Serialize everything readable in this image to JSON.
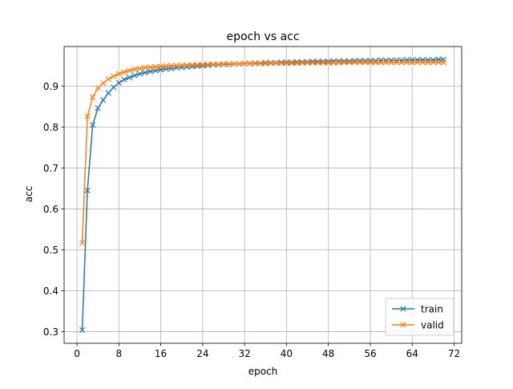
{
  "chart_data": {
    "type": "line",
    "title": "epoch vs acc",
    "xlabel": "epoch",
    "ylabel": "acc",
    "xlim": [
      -2.45,
      73.45
    ],
    "ylim": [
      0.2717,
      0.9967
    ],
    "xticks": [
      0,
      8,
      16,
      24,
      32,
      40,
      48,
      56,
      64,
      72
    ],
    "yticks": [
      0.3,
      0.4,
      0.5,
      0.6,
      0.7,
      0.8,
      0.9
    ],
    "grid": true,
    "legend_position": "lower-right",
    "marker": "x",
    "series": [
      {
        "name": "train",
        "color": "#1f77b4",
        "x": [
          1,
          2,
          3,
          4,
          5,
          6,
          7,
          8,
          9,
          10,
          11,
          12,
          13,
          14,
          15,
          16,
          17,
          18,
          19,
          20,
          21,
          22,
          23,
          24,
          25,
          26,
          27,
          28,
          29,
          30,
          31,
          32,
          33,
          34,
          35,
          36,
          37,
          38,
          39,
          40,
          41,
          42,
          43,
          44,
          45,
          46,
          47,
          48,
          49,
          50,
          51,
          52,
          53,
          54,
          55,
          56,
          57,
          58,
          59,
          60,
          61,
          62,
          63,
          64,
          65,
          66,
          67,
          68,
          69,
          70
        ],
        "values": [
          0.304,
          0.645,
          0.805,
          0.846,
          0.866,
          0.883,
          0.897,
          0.908,
          0.916,
          0.921,
          0.926,
          0.93,
          0.933,
          0.936,
          0.938,
          0.94,
          0.942,
          0.943,
          0.945,
          0.946,
          0.947,
          0.948,
          0.949,
          0.95,
          0.951,
          0.952,
          0.952,
          0.953,
          0.953,
          0.954,
          0.954,
          0.955,
          0.955,
          0.956,
          0.956,
          0.957,
          0.957,
          0.957,
          0.958,
          0.958,
          0.958,
          0.959,
          0.959,
          0.959,
          0.96,
          0.96,
          0.96,
          0.96,
          0.961,
          0.961,
          0.961,
          0.961,
          0.962,
          0.962,
          0.962,
          0.962,
          0.962,
          0.963,
          0.963,
          0.963,
          0.963,
          0.963,
          0.964,
          0.964,
          0.964,
          0.964,
          0.964,
          0.964,
          0.965,
          0.965
        ]
      },
      {
        "name": "valid",
        "color": "#ff7f0e",
        "x": [
          1,
          2,
          3,
          4,
          5,
          6,
          7,
          8,
          9,
          10,
          11,
          12,
          13,
          14,
          15,
          16,
          17,
          18,
          19,
          20,
          21,
          22,
          23,
          24,
          25,
          26,
          27,
          28,
          29,
          30,
          31,
          32,
          33,
          34,
          35,
          36,
          37,
          38,
          39,
          40,
          41,
          42,
          43,
          44,
          45,
          46,
          47,
          48,
          49,
          50,
          51,
          52,
          53,
          54,
          55,
          56,
          57,
          58,
          59,
          60,
          61,
          62,
          63,
          64,
          65,
          66,
          67,
          68,
          69,
          70
        ],
        "values": [
          0.517,
          0.826,
          0.873,
          0.895,
          0.907,
          0.917,
          0.924,
          0.93,
          0.934,
          0.938,
          0.941,
          0.943,
          0.945,
          0.946,
          0.947,
          0.948,
          0.949,
          0.95,
          0.95,
          0.951,
          0.951,
          0.952,
          0.952,
          0.952,
          0.953,
          0.953,
          0.953,
          0.954,
          0.954,
          0.954,
          0.954,
          0.955,
          0.955,
          0.955,
          0.955,
          0.955,
          0.956,
          0.956,
          0.956,
          0.956,
          0.956,
          0.956,
          0.957,
          0.957,
          0.957,
          0.957,
          0.957,
          0.957,
          0.957,
          0.957,
          0.958,
          0.958,
          0.958,
          0.958,
          0.958,
          0.958,
          0.958,
          0.958,
          0.958,
          0.958,
          0.958,
          0.958,
          0.958,
          0.958,
          0.958,
          0.958,
          0.958,
          0.958,
          0.958,
          0.958
        ]
      }
    ]
  }
}
